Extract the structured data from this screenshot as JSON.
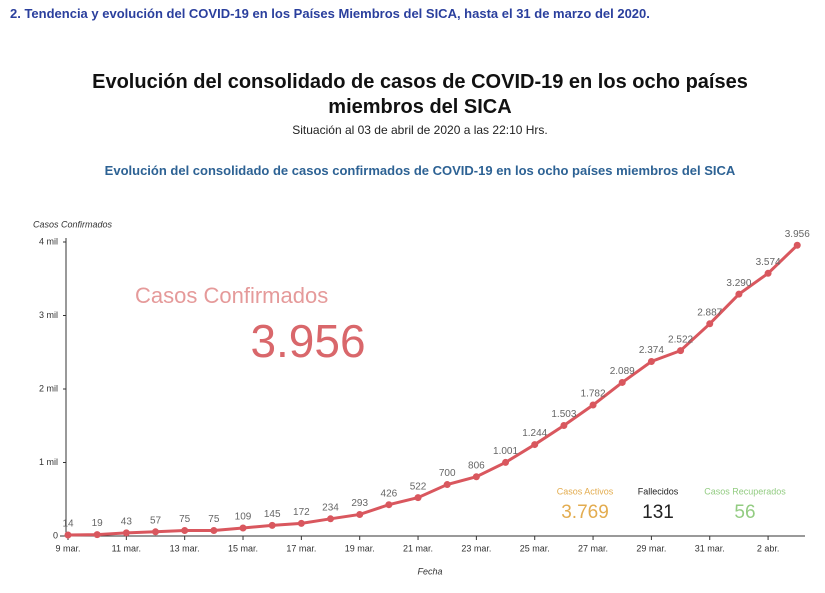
{
  "header": {
    "title": "2.   Tendencia y evolución del COVID-19 en los Países Miembros del SICA, hasta el 31 de marzo del 2020."
  },
  "chart_data": {
    "type": "line",
    "title": "Evolución del consolidado de casos de COVID-19 en los ocho países miembros del SICA",
    "subtitle": "Situación al 03 de abril de 2020 a las 22:10 Hrs.",
    "chart_title": "Evolución del consolidado de casos confirmados de COVID-19 en los ocho países miembros del SICA",
    "ylabel": "Casos Confirmados",
    "xlabel": "Fecha",
    "categories": [
      "9 mar.",
      null,
      "11 mar.",
      null,
      "13 mar.",
      null,
      "15 mar.",
      null,
      "17 mar.",
      null,
      "19 mar.",
      null,
      "21 mar.",
      null,
      "23 mar.",
      null,
      "25 mar.",
      null,
      "27 mar.",
      null,
      "29 mar.",
      null,
      "31 mar.",
      null,
      "2 abr.",
      null
    ],
    "series": [
      {
        "name": "Casos Confirmados",
        "color": "#d9575e",
        "values": [
          14,
          19,
          43,
          57,
          75,
          75,
          109,
          145,
          172,
          234,
          293,
          426,
          522,
          700,
          806,
          1001,
          1244,
          1503,
          1782,
          2089,
          2374,
          2522,
          2887,
          3290,
          3574,
          3956
        ],
        "value_labels": [
          "14",
          "19",
          "43",
          "57",
          "75",
          "75",
          "109",
          "145",
          "172",
          "234",
          "293",
          "426",
          "522",
          "700",
          "806",
          "1.001",
          "1.244",
          "1.503",
          "1.782",
          "2.089",
          "2.374",
          "2.522",
          "2.887",
          "3.290",
          "3.574",
          "3.956"
        ]
      }
    ],
    "ylim": [
      0,
      4000
    ],
    "yticks": [
      0,
      {
        "value": 1000,
        "label": "1 mil"
      },
      {
        "value": 2000,
        "label": "2 mil"
      },
      {
        "value": 3000,
        "label": "3 mil"
      },
      {
        "value": 4000,
        "label": "4 mil"
      }
    ],
    "stats": [
      {
        "label": "Casos Activos",
        "value": "3.769",
        "color": "#e3ac4f"
      },
      {
        "label": "Fallecidos",
        "value": "131",
        "color": "#222222"
      },
      {
        "label": "Casos Recuperados",
        "value": "56",
        "color": "#93cc82"
      }
    ]
  }
}
